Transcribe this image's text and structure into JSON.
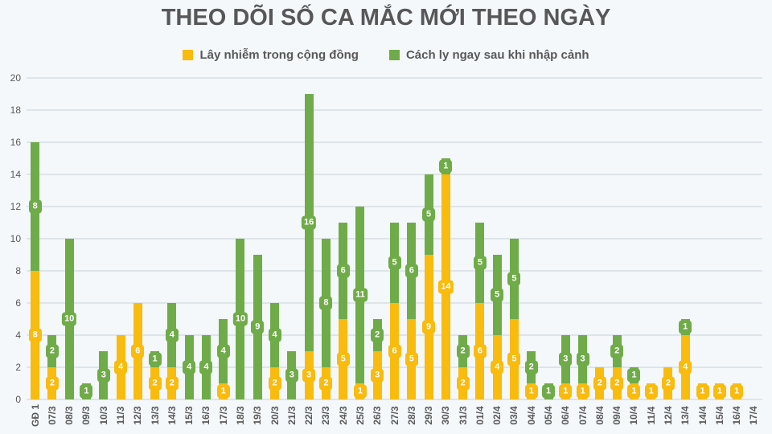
{
  "title": "THEO DÕI SỐ CA MẮC MỚI THEO NGÀY",
  "legend": [
    {
      "label": "Lây nhiễm trong cộng đồng",
      "color": "#f9bb0e"
    },
    {
      "label": "Cách ly ngay sau khi nhập cảnh",
      "color": "#70ab49"
    }
  ],
  "colors": {
    "background": "#f4f8fb",
    "gridline": "#dfe4e9",
    "text": "#595959",
    "community": "#f9bb0e",
    "quarantine": "#70ab49"
  },
  "chart_data": {
    "type": "bar",
    "stacked": true,
    "title": "THEO DÕI SỐ CA MẮC MỚI THEO NGÀY",
    "xlabel": "",
    "ylabel": "",
    "ylim": [
      0,
      20
    ],
    "yticks": [
      0,
      2,
      4,
      6,
      8,
      10,
      12,
      14,
      16,
      18,
      20
    ],
    "grid": true,
    "legend_position": "top",
    "categories": [
      "GĐ 1",
      "07/3",
      "08/3",
      "09/3",
      "10/3",
      "11/3",
      "12/3",
      "13/3",
      "14/3",
      "15/3",
      "16/3",
      "17/3",
      "18/3",
      "19/3",
      "20/3",
      "21/3",
      "22/3",
      "23/3",
      "24/3",
      "25/3",
      "26/3",
      "27/3",
      "28/3",
      "29/3",
      "30/3",
      "31/3",
      "01/4",
      "02/4",
      "03/4",
      "04/4",
      "05/4",
      "06/4",
      "07/4",
      "08/4",
      "09/4",
      "10/4",
      "11/4",
      "12/4",
      "13/4",
      "14/4",
      "15/4",
      "16/4",
      "17/4"
    ],
    "series": [
      {
        "name": "Lây nhiễm trong cộng đồng",
        "color": "#f9bb0e",
        "values": [
          8,
          2,
          0,
          0,
          0,
          4,
          6,
          2,
          2,
          0,
          0,
          1,
          0,
          0,
          2,
          0,
          3,
          2,
          5,
          1,
          3,
          6,
          5,
          9,
          14,
          2,
          6,
          4,
          5,
          1,
          0,
          1,
          1,
          2,
          2,
          1,
          1,
          2,
          4,
          1,
          1,
          1,
          0
        ]
      },
      {
        "name": "Cách ly ngay sau khi nhập cảnh",
        "color": "#70ab49",
        "values": [
          8,
          2,
          10,
          1,
          3,
          0,
          0,
          1,
          4,
          4,
          4,
          4,
          10,
          9,
          4,
          3,
          16,
          8,
          6,
          11,
          2,
          5,
          6,
          5,
          1,
          2,
          5,
          5,
          5,
          2,
          1,
          3,
          3,
          0,
          2,
          1,
          0,
          0,
          1,
          0,
          0,
          0,
          0
        ]
      }
    ]
  }
}
